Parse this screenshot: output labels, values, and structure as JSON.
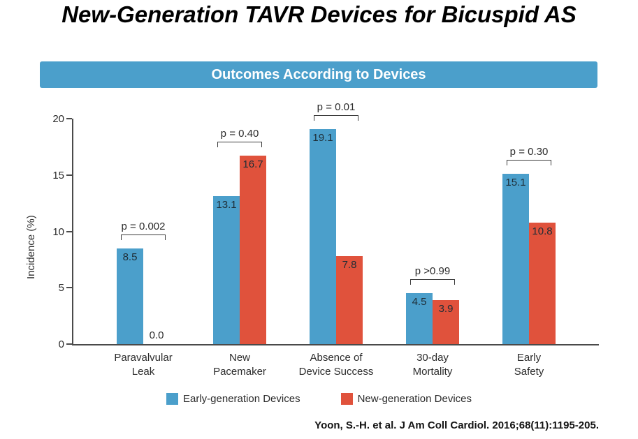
{
  "page": {
    "title": "New-Generation TAVR Devices for Bicuspid AS",
    "citation": "Yoon, S.-H. et al. J Am Coll Cardiol. 2016;68(11):1195-205."
  },
  "colors": {
    "banner_bg": "#4B9FCB",
    "early_gen": "#4B9FCB",
    "new_gen": "#E0523C",
    "axis": "#4a4a4a"
  },
  "chart_data": {
    "type": "bar",
    "title": "Outcomes According to Devices",
    "ylabel": "Incidence (%)",
    "xlabel": "",
    "ylim": [
      0,
      20
    ],
    "yticks": [
      0,
      5,
      10,
      15,
      20
    ],
    "grid": false,
    "legend_position": "bottom",
    "categories": [
      [
        "Paravalvular",
        "Leak"
      ],
      [
        "New",
        "Pacemaker"
      ],
      [
        "Absence of",
        "Device Success"
      ],
      [
        "30-day",
        "Mortality"
      ],
      [
        "Early",
        "Safety"
      ]
    ],
    "series": [
      {
        "name": "Early-generation Devices",
        "color": "#4B9FCB",
        "values": [
          8.5,
          13.1,
          19.1,
          4.5,
          15.1
        ]
      },
      {
        "name": "New-generation Devices",
        "color": "#E0523C",
        "values": [
          0.0,
          16.7,
          7.8,
          3.9,
          10.8
        ]
      }
    ],
    "p_values": [
      "p = 0.002",
      "p = 0.40",
      "p = 0.01",
      "p >0.99",
      "p = 0.30"
    ]
  }
}
